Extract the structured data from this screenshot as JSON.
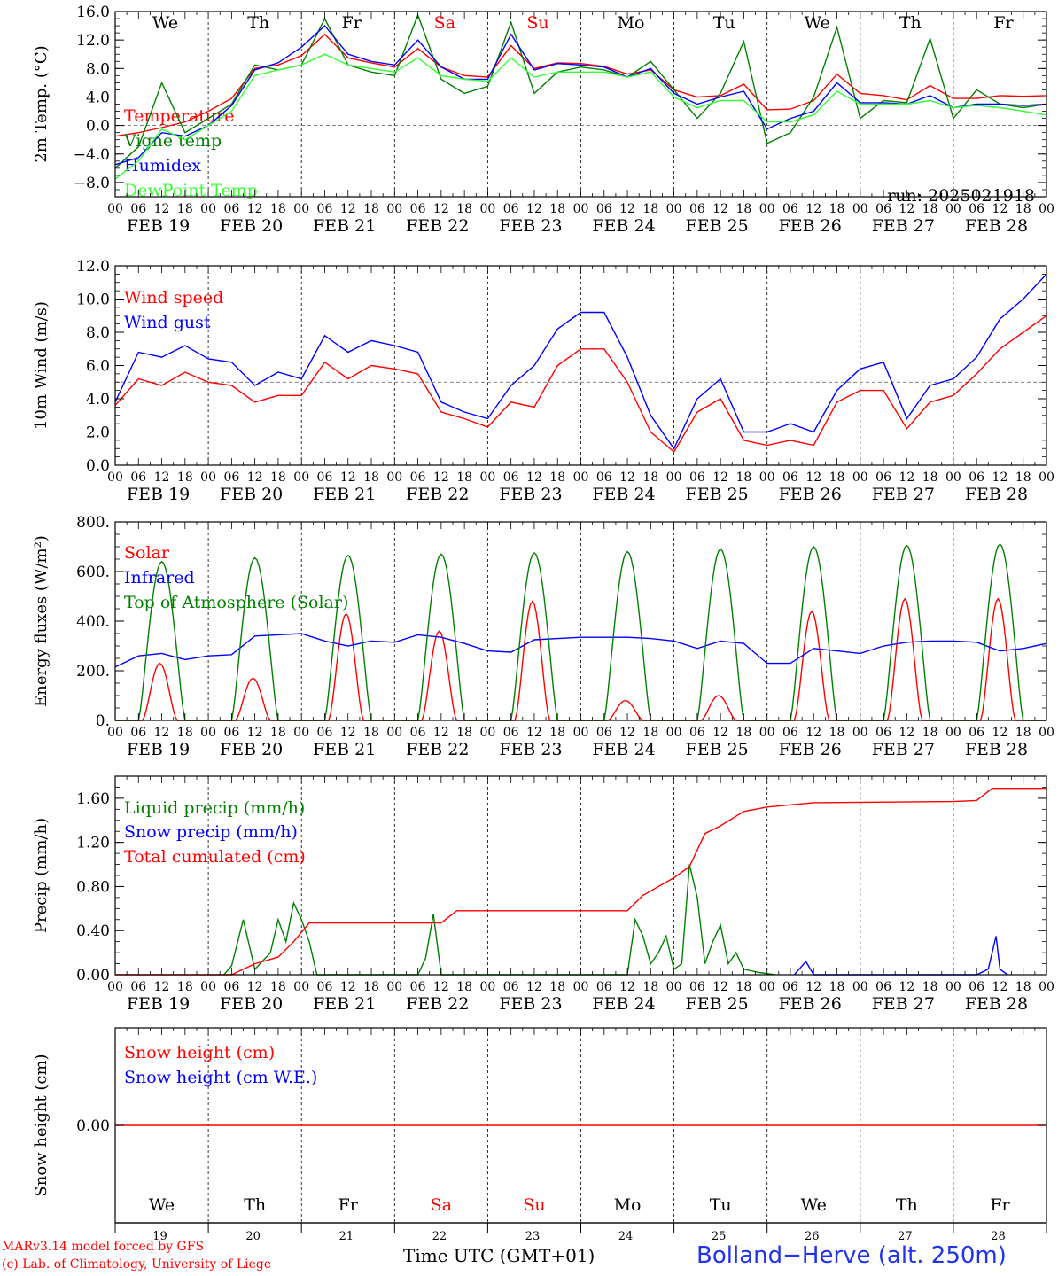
{
  "chart_data": [
    {
      "type": "line",
      "ylabel": "2m Temp. (°C)",
      "ylim": [
        -10,
        16
      ],
      "yticks": [
        "16.0",
        "12.0",
        "8.0",
        "4.0",
        "0.0",
        "−4.0",
        "−8.0"
      ],
      "annotation": "run: 2025021918",
      "series": [
        {
          "name": "Temperature",
          "color": "#ff0000",
          "x_hours": [
            0,
            6,
            12,
            18,
            24,
            30,
            36,
            42,
            48,
            54,
            60,
            66,
            72,
            78,
            84,
            90,
            96,
            102,
            108,
            114,
            120,
            126,
            132,
            138,
            144,
            150,
            156,
            162,
            168,
            174,
            180,
            186,
            192,
            198,
            204,
            210,
            216,
            222,
            228,
            234,
            240
          ],
          "values": [
            -1.5,
            -1,
            -0.3,
            0.5,
            2,
            3.8,
            8,
            8.5,
            9.8,
            12.8,
            9.5,
            8.8,
            8.2,
            10.8,
            8.2,
            7,
            6.8,
            11.2,
            8,
            8.8,
            8.7,
            8.3,
            7.2,
            7.8,
            5,
            4,
            4.2,
            5.8,
            2.2,
            2.3,
            3.5,
            7.2,
            4.5,
            4.2,
            3.6,
            5.6,
            3.8,
            3.8,
            4.2,
            4.1,
            4.2
          ]
        },
        {
          "name": "Vigne temp",
          "color": "#008000",
          "x_hours": [
            0,
            6,
            12,
            18,
            24,
            30,
            36,
            42,
            48,
            54,
            60,
            66,
            72,
            78,
            84,
            90,
            96,
            102,
            108,
            114,
            120,
            126,
            132,
            138,
            144,
            150,
            156,
            162,
            168,
            174,
            180,
            186,
            192,
            198,
            204,
            210,
            216,
            222,
            228,
            234,
            240
          ],
          "values": [
            -6,
            -3,
            6,
            -1,
            1,
            3,
            8.5,
            7.8,
            8.5,
            15,
            8.5,
            7.5,
            7,
            15.5,
            6.5,
            4.5,
            5.5,
            14.5,
            4.5,
            7.5,
            8.2,
            7.8,
            6.8,
            9,
            5,
            1,
            4.5,
            11.8,
            -2.5,
            -1,
            4,
            13.8,
            1,
            3.5,
            3.2,
            12.2,
            1,
            5,
            3,
            2.5,
            3
          ]
        },
        {
          "name": "Humidex",
          "color": "#0000ff",
          "x_hours": [
            0,
            6,
            12,
            18,
            24,
            30,
            36,
            42,
            48,
            54,
            60,
            66,
            72,
            78,
            84,
            90,
            96,
            102,
            108,
            114,
            120,
            126,
            132,
            138,
            144,
            150,
            156,
            162,
            168,
            174,
            180,
            186,
            192,
            198,
            204,
            210,
            216,
            222,
            228,
            234,
            240
          ],
          "values": [
            -5.5,
            -4.5,
            -1,
            -1.5,
            0,
            2.8,
            7.8,
            8.8,
            11,
            14,
            10,
            9,
            8.5,
            12,
            8.2,
            6.5,
            6.5,
            12.8,
            7.8,
            8.7,
            8.5,
            8.2,
            6.8,
            8,
            4.5,
            3,
            4,
            4.8,
            -0.5,
            1,
            2,
            6,
            3.2,
            3.2,
            3,
            4.2,
            2.5,
            3,
            3,
            2.8,
            3
          ]
        },
        {
          "name": "DewPoint Temp",
          "color": "#33ff33",
          "x_hours": [
            0,
            6,
            12,
            18,
            24,
            30,
            36,
            42,
            48,
            54,
            60,
            66,
            72,
            78,
            84,
            90,
            96,
            102,
            108,
            114,
            120,
            126,
            132,
            138,
            144,
            150,
            156,
            162,
            168,
            174,
            180,
            186,
            192,
            198,
            204,
            210,
            216,
            222,
            228,
            234,
            240
          ],
          "values": [
            -7.5,
            -5,
            -0.5,
            -2,
            0,
            2,
            7,
            7.8,
            8.5,
            10,
            8.5,
            8,
            7.5,
            9.5,
            7,
            6.5,
            6.2,
            9.5,
            6.8,
            7.5,
            7.5,
            7.5,
            6.8,
            7.5,
            4,
            2.5,
            3.5,
            3.5,
            0.5,
            0.5,
            1.5,
            4.8,
            3,
            3,
            3,
            3.5,
            2.5,
            2.8,
            2.5,
            2,
            1.5
          ]
        }
      ]
    },
    {
      "type": "line",
      "ylabel": "10m Wind (m/s)",
      "ylim": [
        0,
        12
      ],
      "yticks": [
        "12.0",
        "10.0",
        "8.0",
        "6.0",
        "4.0",
        "2.0",
        "0.0"
      ],
      "series": [
        {
          "name": "Wind speed",
          "color": "#ff0000",
          "x_hours": [
            0,
            6,
            12,
            18,
            24,
            30,
            36,
            42,
            48,
            54,
            60,
            66,
            72,
            78,
            84,
            90,
            96,
            102,
            108,
            114,
            120,
            126,
            132,
            138,
            144,
            150,
            156,
            162,
            168,
            174,
            180,
            186,
            192,
            198,
            204,
            210,
            216,
            222,
            228,
            234,
            240
          ],
          "values": [
            3.6,
            5.2,
            4.8,
            5.6,
            5,
            4.8,
            3.8,
            4.2,
            4.2,
            6.2,
            5.2,
            6,
            5.8,
            5.5,
            3.2,
            2.8,
            2.3,
            3.8,
            3.5,
            6,
            7,
            7,
            5,
            2,
            0.8,
            3.2,
            4,
            1.5,
            1.2,
            1.5,
            1.2,
            3.8,
            4.5,
            4.5,
            2.2,
            3.8,
            4.2,
            5.5,
            7,
            8,
            9
          ]
        },
        {
          "name": "Wind gust",
          "color": "#0000ff",
          "x_hours": [
            0,
            6,
            12,
            18,
            24,
            30,
            36,
            42,
            48,
            54,
            60,
            66,
            72,
            78,
            84,
            90,
            96,
            102,
            108,
            114,
            120,
            126,
            132,
            138,
            144,
            150,
            156,
            162,
            168,
            174,
            180,
            186,
            192,
            198,
            204,
            210,
            216,
            222,
            228,
            234,
            240
          ],
          "values": [
            3.8,
            6.8,
            6.5,
            7.2,
            6.4,
            6.2,
            4.8,
            5.6,
            5.2,
            7.8,
            6.8,
            7.5,
            7.2,
            6.8,
            3.8,
            3.2,
            2.8,
            4.8,
            6,
            8.2,
            9.2,
            9.2,
            6.5,
            3,
            1,
            4,
            5.2,
            2,
            2,
            2.5,
            2,
            4.5,
            5.8,
            6.2,
            2.8,
            4.8,
            5.2,
            6.5,
            8.8,
            10,
            11.5
          ]
        }
      ]
    },
    {
      "type": "line",
      "ylabel": "Energy fluxes (W/m²)",
      "ylim": [
        0,
        800
      ],
      "yticks": [
        "800.",
        "600.",
        "400.",
        "200.",
        "0."
      ],
      "series": [
        {
          "name": "Solar",
          "color": "#ff0000",
          "day_peaks": [
            230,
            170,
            430,
            360,
            480,
            80,
            100,
            440,
            490,
            490
          ]
        },
        {
          "name": "Infrared",
          "color": "#0000ff",
          "x_hours": [
            0,
            6,
            12,
            18,
            24,
            30,
            36,
            42,
            48,
            54,
            60,
            66,
            72,
            78,
            84,
            90,
            96,
            102,
            108,
            114,
            120,
            126,
            132,
            138,
            144,
            150,
            156,
            162,
            168,
            174,
            180,
            186,
            192,
            198,
            204,
            210,
            216,
            222,
            228,
            234,
            240
          ],
          "values": [
            215,
            260,
            270,
            245,
            260,
            265,
            340,
            345,
            350,
            320,
            300,
            320,
            315,
            345,
            335,
            310,
            280,
            275,
            325,
            330,
            335,
            335,
            335,
            330,
            320,
            290,
            320,
            310,
            230,
            230,
            290,
            280,
            270,
            300,
            315,
            320,
            320,
            315,
            280,
            290,
            310
          ]
        },
        {
          "name": "Top of Atmosphere (Solar)",
          "color": "#008000",
          "day_peaks": [
            640,
            655,
            665,
            670,
            675,
            680,
            690,
            700,
            705,
            710
          ]
        }
      ]
    },
    {
      "type": "line",
      "ylabel": "Precip (mm/h)",
      "ylim": [
        0,
        1.8
      ],
      "yticks": [
        "1.60",
        "1.20",
        "0.80",
        "0.40",
        "0.00"
      ],
      "series": [
        {
          "name": "Liquid precip (mm/h)",
          "color": "#008000",
          "points": [
            [
              28,
              0
            ],
            [
              30,
              0.08
            ],
            [
              33,
              0.5
            ],
            [
              36,
              0.05
            ],
            [
              40,
              0.2
            ],
            [
              42,
              0.5
            ],
            [
              44,
              0.3
            ],
            [
              46,
              0.65
            ],
            [
              48,
              0.5
            ],
            [
              50,
              0.3
            ],
            [
              52,
              0
            ],
            [
              78,
              0
            ],
            [
              80,
              0.15
            ],
            [
              82,
              0.55
            ],
            [
              84,
              0
            ],
            [
              132,
              0
            ],
            [
              134,
              0.5
            ],
            [
              136,
              0.35
            ],
            [
              138,
              0.1
            ],
            [
              140,
              0.2
            ],
            [
              142,
              0.35
            ],
            [
              144,
              0.05
            ],
            [
              146,
              0.1
            ],
            [
              148,
              1.0
            ],
            [
              150,
              0.7
            ],
            [
              152,
              0.1
            ],
            [
              154,
              0.3
            ],
            [
              156,
              0.45
            ],
            [
              158,
              0.1
            ],
            [
              160,
              0.2
            ],
            [
              162,
              0.05
            ],
            [
              166,
              0.02
            ],
            [
              170,
              0
            ]
          ]
        },
        {
          "name": "Snow precip (mm/h)",
          "color": "#0000ff",
          "points": [
            [
              175,
              0
            ],
            [
              178,
              0.12
            ],
            [
              180,
              0
            ],
            [
              222,
              0
            ],
            [
              225,
              0.05
            ],
            [
              227,
              0.35
            ],
            [
              228,
              0.05
            ],
            [
              230,
              0
            ]
          ]
        },
        {
          "name": "Total cumulated (cm)",
          "color": "#ff0000",
          "points": [
            [
              0,
              0
            ],
            [
              30,
              0
            ],
            [
              36,
              0.1
            ],
            [
              42,
              0.16
            ],
            [
              46,
              0.3
            ],
            [
              50,
              0.47
            ],
            [
              84,
              0.47
            ],
            [
              88,
              0.58
            ],
            [
              132,
              0.58
            ],
            [
              136,
              0.72
            ],
            [
              144,
              0.88
            ],
            [
              148,
              0.98
            ],
            [
              152,
              1.28
            ],
            [
              156,
              1.35
            ],
            [
              162,
              1.48
            ],
            [
              168,
              1.52
            ],
            [
              180,
              1.56
            ],
            [
              216,
              1.57
            ],
            [
              222,
              1.58
            ],
            [
              226,
              1.69
            ],
            [
              240,
              1.69
            ]
          ]
        }
      ]
    },
    {
      "type": "line",
      "ylabel": "Snow height (cm)",
      "yticks": [
        "0.00"
      ],
      "series": [
        {
          "name": "Snow height (cm)",
          "color": "#ff0000",
          "points": [
            [
              0,
              0
            ],
            [
              240,
              0
            ]
          ]
        },
        {
          "name": "Snow height (cm W.E.)",
          "color": "#0000ff"
        }
      ]
    }
  ],
  "days": [
    {
      "name": "We",
      "weekend": false,
      "date": "FEB 19",
      "num": "19"
    },
    {
      "name": "Th",
      "weekend": false,
      "date": "FEB 20",
      "num": "20"
    },
    {
      "name": "Fr",
      "weekend": false,
      "date": "FEB 21",
      "num": "21"
    },
    {
      "name": "Sa",
      "weekend": true,
      "date": "FEB 22",
      "num": "22"
    },
    {
      "name": "Su",
      "weekend": true,
      "date": "FEB 23",
      "num": "23"
    },
    {
      "name": "Mo",
      "weekend": false,
      "date": "FEB 24",
      "num": "24"
    },
    {
      "name": "Tu",
      "weekend": false,
      "date": "FEB 25",
      "num": "25"
    },
    {
      "name": "We",
      "weekend": false,
      "date": "FEB 26",
      "num": "26"
    },
    {
      "name": "Th",
      "weekend": false,
      "date": "FEB 27",
      "num": "27"
    },
    {
      "name": "Fr",
      "weekend": false,
      "date": "FEB 28",
      "num": "28"
    }
  ],
  "hour_labels": [
    "00",
    "06",
    "12",
    "18"
  ],
  "footer": {
    "xlabel": "Time UTC (GMT+01)",
    "credit_line1": "MARv3.14 model forced by GFS",
    "credit_line2": "(c) Lab. of Climatology, University of Liege",
    "location": "Bolland−Herve (alt. 250m)"
  }
}
